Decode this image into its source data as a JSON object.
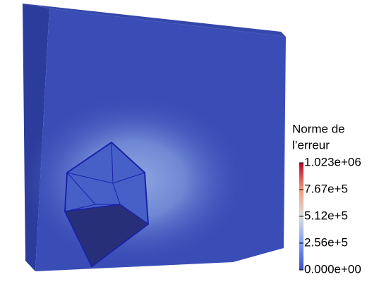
{
  "legend": {
    "title": [
      "Norme de",
      "l’erreur"
    ],
    "range": [
      0,
      1023000
    ],
    "ticks": [
      {
        "value": 1023000,
        "label": "1.023e+06"
      },
      {
        "value": 767000,
        "label": "7.67e+5"
      },
      {
        "value": 512000,
        "label": "5.12e+5"
      },
      {
        "value": 256000,
        "label": "2.56e+5"
      },
      {
        "value": 0,
        "label": "0.000e+00"
      }
    ]
  }
}
